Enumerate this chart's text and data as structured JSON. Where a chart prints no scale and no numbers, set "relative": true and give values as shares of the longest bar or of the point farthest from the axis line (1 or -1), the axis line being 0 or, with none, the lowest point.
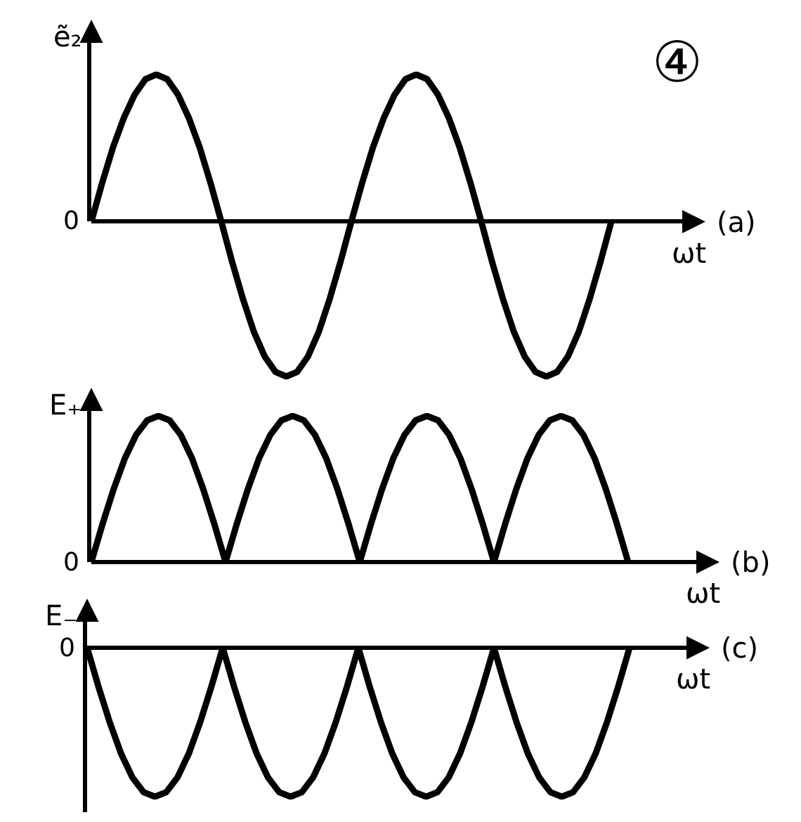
{
  "chart_data": [
    {
      "type": "line",
      "xlabel": "ωt",
      "ylabel": "ẽ₂",
      "relative": true,
      "marker": "none",
      "line_style": "solid",
      "annotations": [
        "0",
        "(a)",
        "④"
      ],
      "categories": [
        null,
        null,
        null,
        null,
        null,
        null,
        null,
        null,
        null,
        null,
        null,
        null,
        null,
        null,
        null,
        null,
        null,
        null,
        null,
        null,
        null,
        null,
        null,
        null,
        null,
        null,
        null,
        null,
        null,
        null,
        null,
        null,
        null,
        null,
        null,
        null,
        null,
        null,
        null,
        null,
        null,
        null,
        null,
        null,
        null,
        null,
        null,
        null,
        null
      ],
      "series": [
        {
          "color": "#000000",
          "values": [
            0,
            0.25,
            0.48,
            0.67,
            0.82,
            0.92,
            0.95,
            0.92,
            0.82,
            0.67,
            0.48,
            0.25,
            0,
            -0.26,
            -0.5,
            -0.71,
            -0.87,
            -0.97,
            -1,
            -0.97,
            -0.87,
            -0.71,
            -0.5,
            -0.26,
            0,
            0.25,
            0.48,
            0.67,
            0.82,
            0.92,
            0.95,
            0.92,
            0.82,
            0.67,
            0.48,
            0.25,
            0,
            -0.26,
            -0.5,
            -0.71,
            -0.87,
            -0.97,
            -1,
            -0.97,
            -0.87,
            -0.71,
            -0.5,
            -0.26,
            0
          ]
        }
      ]
    },
    {
      "type": "line",
      "xlabel": "ωt",
      "ylabel": "E₊",
      "relative": true,
      "marker": "none",
      "line_style": "solid",
      "annotations": [
        "0",
        "(b)"
      ],
      "categories": [
        null,
        null,
        null,
        null,
        null,
        null,
        null,
        null,
        null,
        null,
        null,
        null,
        null,
        null,
        null,
        null,
        null,
        null,
        null,
        null,
        null,
        null,
        null,
        null,
        null,
        null,
        null,
        null,
        null,
        null,
        null,
        null,
        null,
        null,
        null,
        null,
        null,
        null,
        null,
        null,
        null,
        null,
        null,
        null,
        null,
        null,
        null,
        null,
        null
      ],
      "series": [
        {
          "color": "#000000",
          "values": [
            0,
            0.26,
            0.5,
            0.71,
            0.87,
            0.97,
            1,
            0.97,
            0.87,
            0.71,
            0.5,
            0.26,
            0,
            0.26,
            0.5,
            0.71,
            0.87,
            0.97,
            1,
            0.97,
            0.87,
            0.71,
            0.5,
            0.26,
            0,
            0.26,
            0.5,
            0.71,
            0.87,
            0.97,
            1,
            0.97,
            0.87,
            0.71,
            0.5,
            0.26,
            0,
            0.26,
            0.5,
            0.71,
            0.87,
            0.97,
            1,
            0.97,
            0.87,
            0.71,
            0.5,
            0.26,
            0
          ]
        }
      ]
    },
    {
      "type": "line",
      "xlabel": "ωt",
      "ylabel": "E₋",
      "relative": true,
      "marker": "none",
      "line_style": "solid",
      "annotations": [
        "0",
        "(c)"
      ],
      "categories": [
        null,
        null,
        null,
        null,
        null,
        null,
        null,
        null,
        null,
        null,
        null,
        null,
        null,
        null,
        null,
        null,
        null,
        null,
        null,
        null,
        null,
        null,
        null,
        null,
        null,
        null,
        null,
        null,
        null,
        null,
        null,
        null,
        null,
        null,
        null,
        null,
        null,
        null,
        null,
        null,
        null,
        null,
        null,
        null,
        null,
        null,
        null,
        null,
        null
      ],
      "series": [
        {
          "color": "#000000",
          "values": [
            0,
            -0.26,
            -0.5,
            -0.71,
            -0.87,
            -0.97,
            -1,
            -0.97,
            -0.87,
            -0.71,
            -0.5,
            -0.26,
            0,
            -0.26,
            -0.5,
            -0.71,
            -0.87,
            -0.97,
            -1,
            -0.97,
            -0.87,
            -0.71,
            -0.5,
            -0.26,
            0,
            -0.26,
            -0.5,
            -0.71,
            -0.87,
            -0.97,
            -1,
            -0.97,
            -0.87,
            -0.71,
            -0.5,
            -0.26,
            0,
            -0.26,
            -0.5,
            -0.71,
            -0.87,
            -0.97,
            -1,
            -0.97,
            -0.87,
            -0.71,
            -0.5,
            -0.26,
            0
          ]
        }
      ]
    }
  ]
}
